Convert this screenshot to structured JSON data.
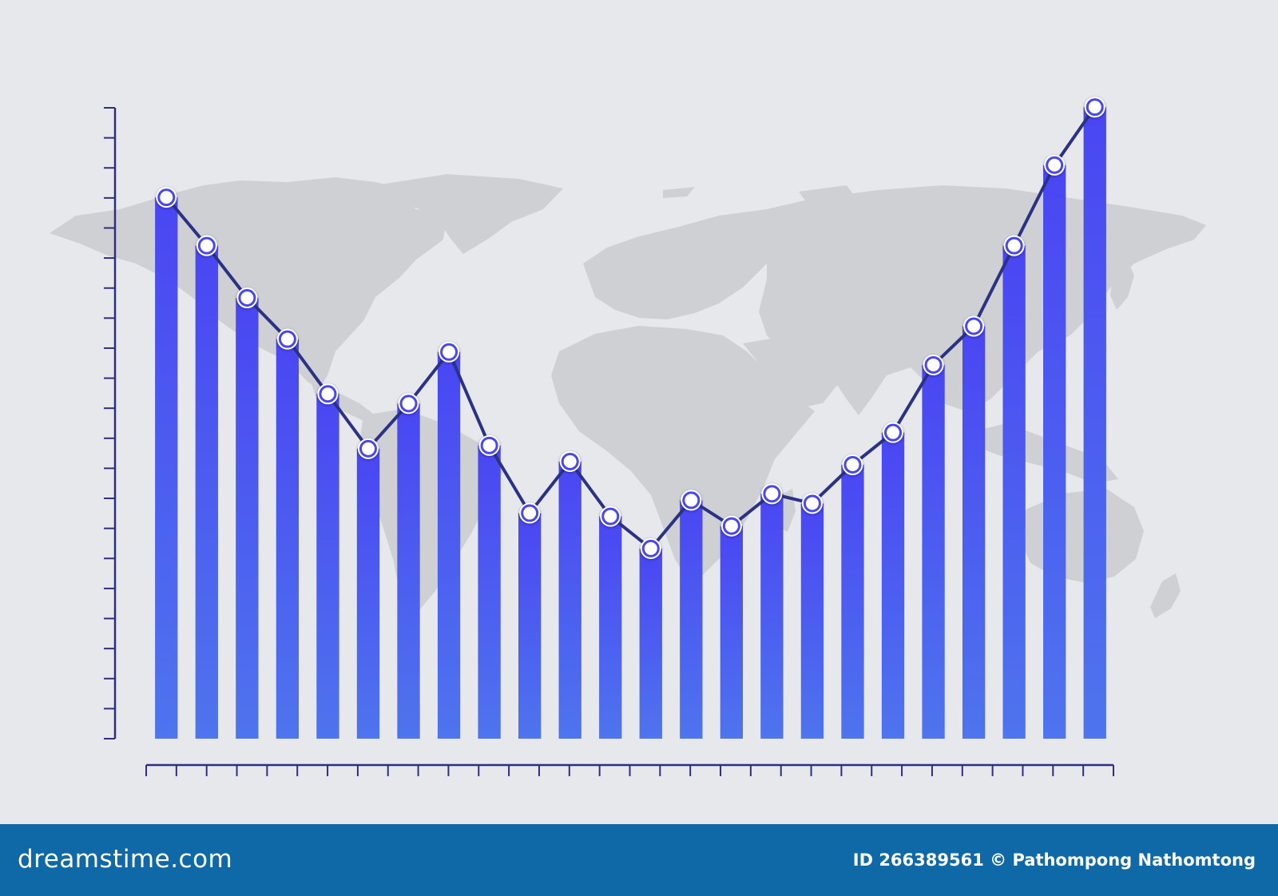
{
  "chart_data": {
    "type": "bar",
    "overlay": "line",
    "values": [
      84.0,
      76.5,
      68.4,
      62.0,
      53.5,
      45.0,
      52.0,
      60.0,
      45.5,
      35.0,
      43.0,
      34.5,
      29.5,
      37.0,
      33.0,
      38.0,
      36.5,
      42.5,
      47.5,
      58.0,
      64.0,
      76.5,
      89.0,
      98.0
    ],
    "ylim": [
      0,
      100
    ],
    "y_tick_count": 22,
    "x_tick_count": 33,
    "grid": false,
    "legend": "none",
    "background": "world-map",
    "colors": {
      "bar_top": "#4a46f2",
      "bar_bottom": "#4e74ee",
      "line": "#2b3285",
      "axis": "#2e2f80",
      "marker_fill": "#ffffff",
      "map": "#cfd0d3"
    }
  },
  "watermark": {
    "brand": "dreamstime"
  },
  "footer": {
    "logo": "dreamstime.com",
    "credit": "ID 266389561 © Pathompong Nathomtong"
  }
}
